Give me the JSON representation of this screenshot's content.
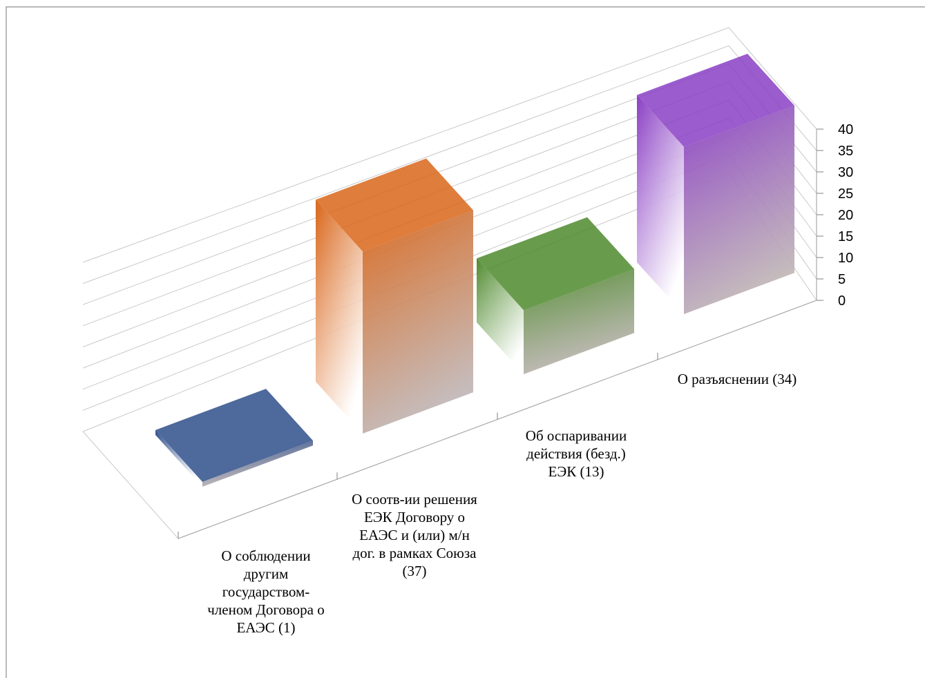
{
  "chart_data": {
    "type": "bar",
    "projection": "3d",
    "categories": [
      "О соблюдении другим государством-членом Договора о ЕАЭС (1)",
      "О соотв-ии решения ЕЭК Договору о ЕАЭС и (или) м/н дог. в рамках Союза (37)",
      "Об оспаривании действия (безд.) ЕЭК (13)",
      "О разъяснении (34)"
    ],
    "category_label_lines": [
      [
        "О соблюдении",
        "другим",
        "государством-",
        "членом Договора о",
        "ЕАЭС (1)"
      ],
      [
        "О соотв-ии решения",
        "ЕЭК Договору о",
        "ЕАЭС и (или) м/н",
        "дог. в рамках Союза",
        "(37)"
      ],
      [
        "Об оспаривании",
        "действия (безд.)",
        "ЕЭК (13)"
      ],
      [
        "О разъяснении (34)"
      ]
    ],
    "values": [
      1,
      37,
      13,
      34
    ],
    "colors": [
      "#2f4f8a",
      "#d9661a",
      "#4f8a2e",
      "#8a3fc4"
    ],
    "ylim": [
      0,
      40
    ],
    "yticks": [
      "0",
      "5",
      "10",
      "15",
      "20",
      "25",
      "30",
      "35",
      "40"
    ],
    "title": "",
    "xlabel": "",
    "ylabel": "",
    "grid": true,
    "legend": "none"
  }
}
